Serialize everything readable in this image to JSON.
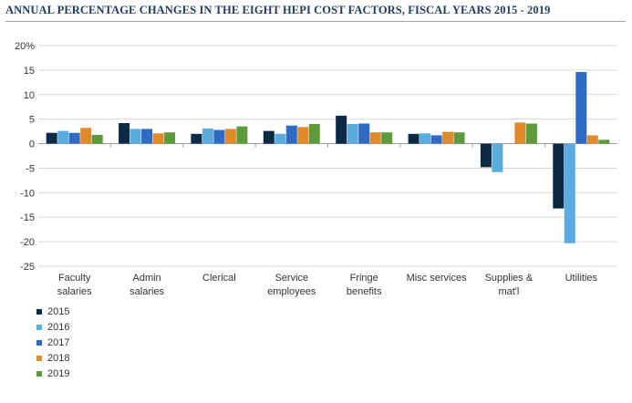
{
  "chart_data": {
    "type": "bar",
    "title": "ANNUAL PERCENTAGE CHANGES IN THE EIGHT HEPI COST FACTORS, FISCAL YEARS 2015 - 2019",
    "categories": [
      [
        "Faculty",
        "salaries"
      ],
      [
        "Admin",
        "salaries"
      ],
      [
        "Clerical"
      ],
      [
        "Service",
        "employees"
      ],
      [
        "Fringe",
        "benefits"
      ],
      [
        "Misc services"
      ],
      [
        "Supplies &",
        "mat'l"
      ],
      [
        "Utilities"
      ]
    ],
    "series": [
      {
        "name": "2015",
        "color": "#0d2a45",
        "values": [
          2.2,
          4.2,
          2.0,
          2.6,
          5.7,
          2.0,
          -4.8,
          -13.2
        ]
      },
      {
        "name": "2016",
        "color": "#5aace0",
        "values": [
          2.6,
          3.0,
          3.1,
          2.0,
          4.0,
          2.1,
          -5.8,
          -20.3
        ]
      },
      {
        "name": "2017",
        "color": "#2f6bc4",
        "values": [
          2.2,
          3.0,
          2.8,
          3.7,
          4.1,
          1.7,
          0.0,
          14.6
        ]
      },
      {
        "name": "2018",
        "color": "#e08a2c",
        "values": [
          3.2,
          2.1,
          3.0,
          3.4,
          2.3,
          2.4,
          4.3,
          1.7
        ]
      },
      {
        "name": "2019",
        "color": "#5d9a3c",
        "values": [
          1.8,
          2.3,
          3.5,
          4.0,
          2.3,
          2.3,
          4.1,
          0.8
        ]
      }
    ],
    "yticks": [
      "20%",
      "15",
      "10",
      "5",
      "0",
      "-5",
      "-10",
      "-15",
      "-20",
      "-25"
    ],
    "ylim": [
      -25,
      20
    ],
    "grid": true,
    "legend_position": "bottom-left"
  }
}
